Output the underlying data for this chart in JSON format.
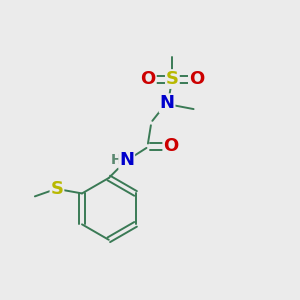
{
  "background_color": "#ebebeb",
  "figsize": [
    3.0,
    3.0
  ],
  "dpi": 100,
  "colors": {
    "C_bond": "#3a7a55",
    "N": "#0000cc",
    "O": "#cc0000",
    "S": "#b8b800",
    "H": "#5a8870"
  },
  "bond_lw": 1.4,
  "font_size": 13,
  "font_size_small": 10
}
